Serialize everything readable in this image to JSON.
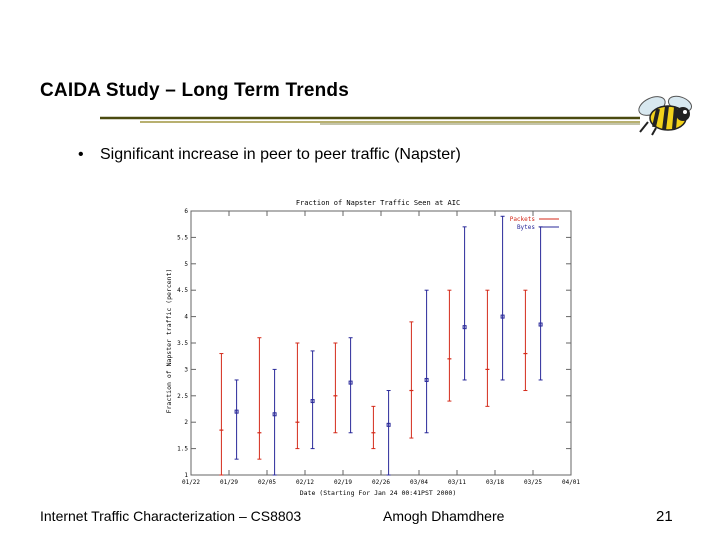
{
  "slide": {
    "title": "CAIDA Study – Long Term Trends",
    "bullet": "Significant increase in peer to peer traffic (Napster)",
    "footer_left": "Internet Traffic Characterization – CS8803",
    "footer_center": "Amogh Dhamdhere",
    "page_number": "21",
    "accent_colors": {
      "rule_dark": "#4a4a10",
      "rule_light": "#b8b070",
      "bee_yellow": "#f2d21b"
    }
  },
  "chart_data": {
    "type": "scatter",
    "title": "Fraction of Napster Traffic Seen at AIC",
    "xlabel": "Date (Starting For Jan 24 00:41PST 2000)",
    "ylabel": "Fraction of Napster traffic (percent)",
    "x_tick_labels": [
      "01/22",
      "01/29",
      "02/05",
      "02/12",
      "02/19",
      "02/26",
      "03/04",
      "03/11",
      "03/18",
      "03/25",
      "04/01"
    ],
    "y_tick_labels": [
      "1",
      "1.5",
      "2",
      "2.5",
      "3",
      "3.5",
      "4",
      "4.5",
      "5",
      "5.5",
      "6"
    ],
    "ylim": [
      1,
      6
    ],
    "legend_position": "top-right",
    "series": [
      {
        "name": "Packets",
        "color": "#d42a1a",
        "points": [
          {
            "x": 0.8,
            "y": 1.85,
            "low": 1.0,
            "high": 3.3
          },
          {
            "x": 1.8,
            "y": 1.8,
            "low": 1.3,
            "high": 3.6
          },
          {
            "x": 2.8,
            "y": 2.0,
            "low": 1.5,
            "high": 3.5
          },
          {
            "x": 3.8,
            "y": 2.5,
            "low": 1.8,
            "high": 3.5
          },
          {
            "x": 4.8,
            "y": 1.8,
            "low": 1.5,
            "high": 2.3
          },
          {
            "x": 5.8,
            "y": 2.6,
            "low": 1.7,
            "high": 3.9
          },
          {
            "x": 6.8,
            "y": 3.2,
            "low": 2.4,
            "high": 4.5
          },
          {
            "x": 7.8,
            "y": 3.0,
            "low": 2.3,
            "high": 4.5
          },
          {
            "x": 8.8,
            "y": 3.3,
            "low": 2.6,
            "high": 4.5
          }
        ]
      },
      {
        "name": "Bytes",
        "color": "#2a2a9a",
        "points": [
          {
            "x": 1.2,
            "y": 2.2,
            "low": 1.3,
            "high": 2.8
          },
          {
            "x": 2.2,
            "y": 2.15,
            "low": 1.0,
            "high": 3.0
          },
          {
            "x": 3.2,
            "y": 2.4,
            "low": 1.5,
            "high": 3.35
          },
          {
            "x": 4.2,
            "y": 2.75,
            "low": 1.8,
            "high": 3.6
          },
          {
            "x": 5.2,
            "y": 1.95,
            "low": 1.0,
            "high": 2.6
          },
          {
            "x": 6.2,
            "y": 2.8,
            "low": 1.8,
            "high": 4.5
          },
          {
            "x": 7.2,
            "y": 3.8,
            "low": 2.8,
            "high": 5.7
          },
          {
            "x": 8.2,
            "y": 4.0,
            "low": 2.8,
            "high": 5.9
          },
          {
            "x": 9.2,
            "y": 3.85,
            "low": 2.8,
            "high": 5.7
          }
        ]
      }
    ]
  }
}
